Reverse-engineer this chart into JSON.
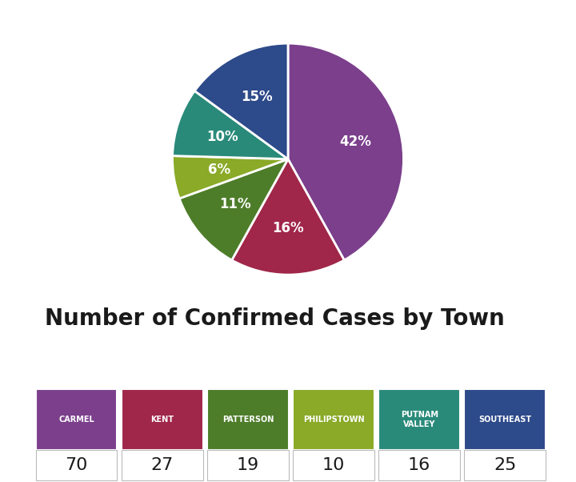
{
  "pie_labels": [
    "Carmel",
    "Kent",
    "Patterson",
    "Philipstown",
    "Putnam Valley",
    "Southeast"
  ],
  "pie_values": [
    70,
    27,
    19,
    10,
    16,
    25
  ],
  "pie_percentages": [
    "42%",
    "16%",
    "11%",
    "6%",
    "10%",
    "15%"
  ],
  "pie_colors": [
    "#7b3f8c",
    "#a0264a",
    "#4e7d2a",
    "#8aaa28",
    "#2a8a7a",
    "#2d4a8a"
  ],
  "table_headers": [
    "CARMEL",
    "KENT",
    "PATTERSON",
    "PHILIPSTOWN",
    "PUTNAM\nVALLEY",
    "SOUTHEAST"
  ],
  "table_values": [
    "70",
    "27",
    "19",
    "10",
    "16",
    "25"
  ],
  "table_header_colors": [
    "#7b3f8c",
    "#a0264a",
    "#4e7d2a",
    "#8aaa28",
    "#2a8a7a",
    "#2d4a8a"
  ],
  "table_title": "Number of Confirmed Cases by Town",
  "bg_color": "#ffffff",
  "text_color_white": "#ffffff",
  "text_color_dark": "#1a1a1a",
  "title_fontsize": 20,
  "pct_fontsize": 12
}
